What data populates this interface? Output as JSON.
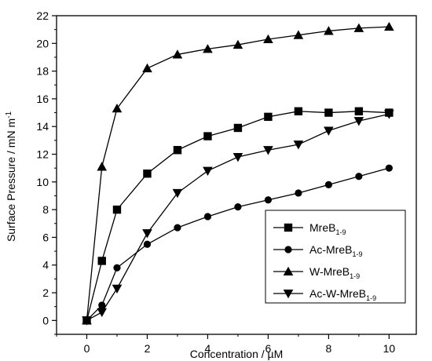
{
  "chart_data": {
    "type": "line",
    "xlabel": "Concentration / µM",
    "ylabel_main": "Surface Pressure / mN m",
    "ylabel_sup": "-1",
    "xlim": [
      -1,
      10.9
    ],
    "ylim": [
      -1,
      22
    ],
    "xticks": [
      0,
      2,
      4,
      6,
      8,
      10
    ],
    "yticks": [
      0,
      2,
      4,
      6,
      8,
      10,
      12,
      14,
      16,
      18,
      20,
      22
    ],
    "legend_position": "lower-right",
    "series": [
      {
        "name": "MreB",
        "name_sub": "1-9",
        "marker": "square",
        "x": [
          0,
          0.5,
          1,
          2,
          3,
          4,
          5,
          6,
          7,
          8,
          9,
          10
        ],
        "y": [
          0.0,
          4.3,
          8.0,
          10.6,
          12.3,
          13.3,
          13.9,
          14.7,
          15.1,
          15.0,
          15.1,
          15.0
        ]
      },
      {
        "name": "Ac-MreB",
        "name_sub": "1-9",
        "marker": "circle",
        "x": [
          0,
          0.5,
          1,
          2,
          3,
          4,
          5,
          6,
          7,
          8,
          9,
          10
        ],
        "y": [
          0.0,
          1.1,
          3.8,
          5.5,
          6.7,
          7.5,
          8.2,
          8.7,
          9.2,
          9.8,
          10.4,
          11.0
        ]
      },
      {
        "name": "W-MreB",
        "name_sub": "1-9",
        "marker": "triangle-up",
        "x": [
          0,
          0.5,
          1,
          2,
          3,
          4,
          5,
          6,
          7,
          8,
          9,
          10
        ],
        "y": [
          0.0,
          11.1,
          15.3,
          18.2,
          19.2,
          19.6,
          19.9,
          20.3,
          20.6,
          20.9,
          21.1,
          21.2
        ]
      },
      {
        "name": "Ac-W-MreB",
        "name_sub": "1-9",
        "marker": "triangle-down",
        "x": [
          0,
          0.5,
          1,
          2,
          3,
          4,
          5,
          6,
          7,
          8,
          9,
          10
        ],
        "y": [
          0.0,
          0.6,
          2.3,
          6.3,
          9.2,
          10.8,
          11.8,
          12.3,
          12.7,
          13.7,
          14.4,
          14.9
        ]
      }
    ]
  }
}
